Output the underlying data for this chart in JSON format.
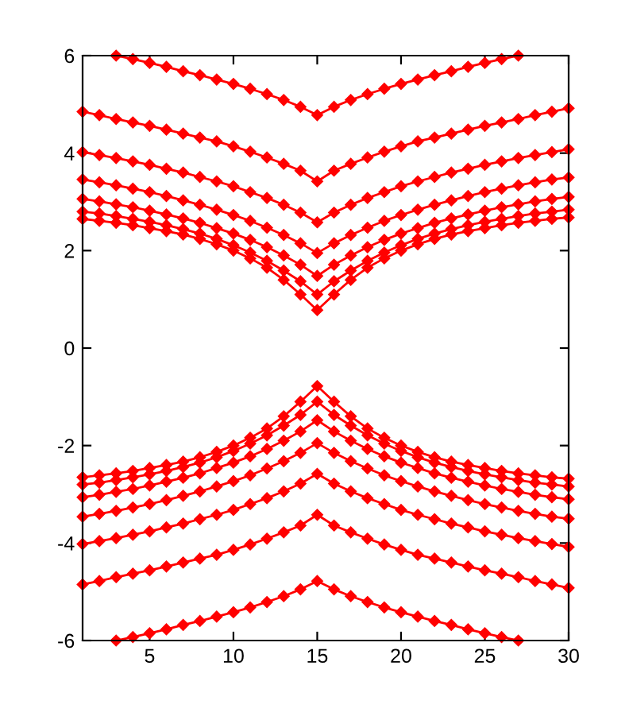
{
  "chart_data": {
    "type": "line",
    "x": [
      1,
      2,
      3,
      4,
      5,
      6,
      7,
      8,
      9,
      10,
      11,
      12,
      13,
      14,
      15,
      16,
      17,
      18,
      19,
      20,
      21,
      22,
      23,
      24,
      25,
      26,
      27,
      28,
      29,
      30
    ],
    "xlim": [
      1,
      30
    ],
    "xticks": [
      5,
      10,
      15,
      20,
      25,
      30
    ],
    "ylim": [
      -6,
      6
    ],
    "yticks": [
      -6,
      -4,
      -2,
      0,
      2,
      4,
      6
    ],
    "grid": false,
    "legend": false,
    "marker": "diamond",
    "line_style": "solid",
    "series": [
      {
        "color": "#ff0000",
        "values": [
          null,
          null,
          6.0,
          5.93,
          5.85,
          5.77,
          5.68,
          5.6,
          5.51,
          5.42,
          5.32,
          5.21,
          5.09,
          4.95,
          4.78,
          4.95,
          5.09,
          5.21,
          5.32,
          5.42,
          5.51,
          5.6,
          5.68,
          5.77,
          5.85,
          5.93,
          6.0,
          null,
          null,
          null
        ]
      },
      {
        "color": "#ff0000",
        "values": [
          4.85,
          4.78,
          4.7,
          4.63,
          4.56,
          4.48,
          4.4,
          4.32,
          4.24,
          4.14,
          4.03,
          3.91,
          3.78,
          3.64,
          3.42,
          3.64,
          3.78,
          3.91,
          4.03,
          4.14,
          4.24,
          4.32,
          4.4,
          4.48,
          4.56,
          4.63,
          4.7,
          4.78,
          4.85,
          4.92
        ]
      },
      {
        "color": "#ff0000",
        "values": [
          4.02,
          3.96,
          3.9,
          3.83,
          3.76,
          3.68,
          3.6,
          3.51,
          3.42,
          3.32,
          3.2,
          3.08,
          2.94,
          2.78,
          2.58,
          2.78,
          2.94,
          3.08,
          3.2,
          3.32,
          3.42,
          3.51,
          3.6,
          3.68,
          3.76,
          3.83,
          3.9,
          3.96,
          4.02,
          4.08
        ]
      },
      {
        "color": "#ff0000",
        "values": [
          3.46,
          3.4,
          3.34,
          3.27,
          3.2,
          3.12,
          3.03,
          2.94,
          2.84,
          2.73,
          2.61,
          2.47,
          2.32,
          2.15,
          1.95,
          2.15,
          2.32,
          2.47,
          2.61,
          2.73,
          2.84,
          2.94,
          3.03,
          3.12,
          3.2,
          3.27,
          3.34,
          3.4,
          3.46,
          3.5
        ]
      },
      {
        "color": "#ff0000",
        "values": [
          3.06,
          3.01,
          2.95,
          2.89,
          2.82,
          2.74,
          2.66,
          2.57,
          2.46,
          2.35,
          2.22,
          2.07,
          1.9,
          1.71,
          1.48,
          1.71,
          1.9,
          2.07,
          2.22,
          2.35,
          2.46,
          2.57,
          2.66,
          2.74,
          2.82,
          2.89,
          2.95,
          3.01,
          3.06,
          3.1
        ]
      },
      {
        "color": "#ff0000",
        "values": [
          2.8,
          2.76,
          2.71,
          2.65,
          2.59,
          2.52,
          2.44,
          2.35,
          2.24,
          2.11,
          1.96,
          1.79,
          1.59,
          1.37,
          1.1,
          1.37,
          1.59,
          1.79,
          1.96,
          2.11,
          2.24,
          2.35,
          2.44,
          2.52,
          2.59,
          2.65,
          2.71,
          2.76,
          2.8,
          2.84
        ]
      },
      {
        "color": "#ff0000",
        "values": [
          2.65,
          2.61,
          2.57,
          2.52,
          2.46,
          2.4,
          2.33,
          2.24,
          2.13,
          2.0,
          1.84,
          1.65,
          1.4,
          1.1,
          0.78,
          1.1,
          1.4,
          1.65,
          1.84,
          2.0,
          2.13,
          2.24,
          2.33,
          2.4,
          2.46,
          2.52,
          2.57,
          2.61,
          2.65,
          2.68
        ]
      },
      {
        "color": "#ff0000",
        "values": [
          -2.65,
          -2.61,
          -2.57,
          -2.52,
          -2.46,
          -2.4,
          -2.33,
          -2.24,
          -2.13,
          -2.0,
          -1.84,
          -1.65,
          -1.4,
          -1.1,
          -0.78,
          -1.1,
          -1.4,
          -1.65,
          -1.84,
          -2.0,
          -2.13,
          -2.24,
          -2.33,
          -2.4,
          -2.46,
          -2.52,
          -2.57,
          -2.61,
          -2.65,
          -2.68
        ]
      },
      {
        "color": "#ff0000",
        "values": [
          -2.8,
          -2.76,
          -2.71,
          -2.65,
          -2.59,
          -2.52,
          -2.44,
          -2.35,
          -2.24,
          -2.11,
          -1.96,
          -1.79,
          -1.59,
          -1.37,
          -1.1,
          -1.37,
          -1.59,
          -1.79,
          -1.96,
          -2.11,
          -2.24,
          -2.35,
          -2.44,
          -2.52,
          -2.59,
          -2.65,
          -2.71,
          -2.76,
          -2.8,
          -2.84
        ]
      },
      {
        "color": "#ff0000",
        "values": [
          -3.06,
          -3.01,
          -2.95,
          -2.89,
          -2.82,
          -2.74,
          -2.66,
          -2.57,
          -2.46,
          -2.35,
          -2.22,
          -2.07,
          -1.9,
          -1.71,
          -1.48,
          -1.71,
          -1.9,
          -2.07,
          -2.22,
          -2.35,
          -2.46,
          -2.57,
          -2.66,
          -2.74,
          -2.82,
          -2.89,
          -2.95,
          -3.01,
          -3.06,
          -3.1
        ]
      },
      {
        "color": "#ff0000",
        "values": [
          -3.46,
          -3.4,
          -3.34,
          -3.27,
          -3.2,
          -3.12,
          -3.03,
          -2.94,
          -2.84,
          -2.73,
          -2.61,
          -2.47,
          -2.32,
          -2.15,
          -1.95,
          -2.15,
          -2.32,
          -2.47,
          -2.61,
          -2.73,
          -2.84,
          -2.94,
          -3.03,
          -3.12,
          -3.2,
          -3.27,
          -3.34,
          -3.4,
          -3.46,
          -3.5
        ]
      },
      {
        "color": "#ff0000",
        "values": [
          -4.02,
          -3.96,
          -3.9,
          -3.83,
          -3.76,
          -3.68,
          -3.6,
          -3.51,
          -3.42,
          -3.32,
          -3.2,
          -3.08,
          -2.94,
          -2.78,
          -2.58,
          -2.78,
          -2.94,
          -3.08,
          -3.2,
          -3.32,
          -3.42,
          -3.51,
          -3.6,
          -3.68,
          -3.76,
          -3.83,
          -3.9,
          -3.96,
          -4.02,
          -4.08
        ]
      },
      {
        "color": "#ff0000",
        "values": [
          -4.85,
          -4.78,
          -4.7,
          -4.63,
          -4.56,
          -4.48,
          -4.4,
          -4.32,
          -4.24,
          -4.14,
          -4.03,
          -3.91,
          -3.78,
          -3.64,
          -3.42,
          -3.64,
          -3.78,
          -3.91,
          -4.03,
          -4.14,
          -4.24,
          -4.32,
          -4.4,
          -4.48,
          -4.56,
          -4.63,
          -4.7,
          -4.78,
          -4.85,
          -4.92
        ]
      },
      {
        "color": "#ff0000",
        "values": [
          null,
          null,
          -6.0,
          -5.93,
          -5.85,
          -5.77,
          -5.68,
          -5.6,
          -5.51,
          -5.42,
          -5.32,
          -5.21,
          -5.09,
          -4.95,
          -4.78,
          -4.95,
          -5.09,
          -5.21,
          -5.32,
          -5.42,
          -5.51,
          -5.6,
          -5.68,
          -5.77,
          -5.85,
          -5.93,
          -6.0,
          null,
          null,
          null
        ]
      }
    ]
  }
}
